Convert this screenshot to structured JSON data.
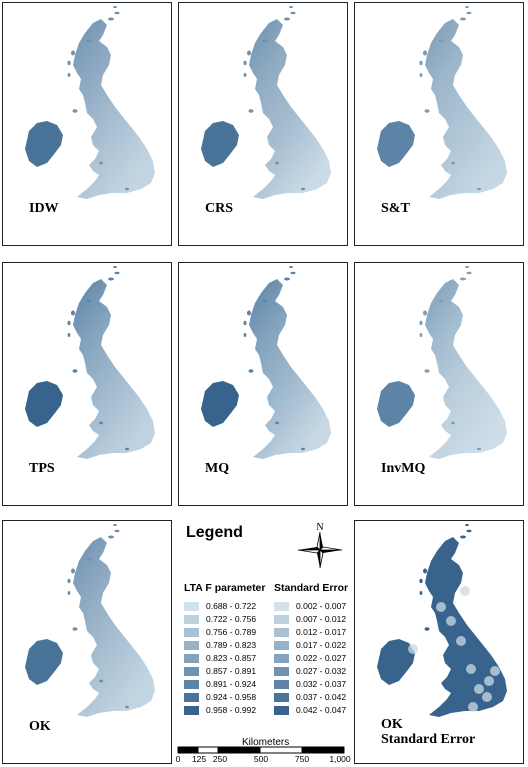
{
  "panels": [
    {
      "label": "IDW"
    },
    {
      "label": "CRS"
    },
    {
      "label": "S&T"
    },
    {
      "label": "TPS"
    },
    {
      "label": "MQ"
    },
    {
      "label": "InvMQ"
    },
    {
      "label": "OK"
    },
    {
      "label": "OK",
      "label2": "Standard Error"
    }
  ],
  "legend": {
    "title": "Legend",
    "col1_title": "LTA F parameter",
    "col2_title": "Standard Error",
    "col1": [
      {
        "label": "0.688 - 0.722",
        "color": "#d3e1ea"
      },
      {
        "label": "0.722 - 0.756",
        "color": "#bdd0de"
      },
      {
        "label": "0.756 - 0.789",
        "color": "#a9c1d3"
      },
      {
        "label": "0.789 - 0.823",
        "color": "#96b2c9"
      },
      {
        "label": "0.823 - 0.857",
        "color": "#83a3be"
      },
      {
        "label": "0.857 - 0.891",
        "color": "#7093b2"
      },
      {
        "label": "0.891 - 0.924",
        "color": "#5d83a6"
      },
      {
        "label": "0.924 - 0.958",
        "color": "#4a739a"
      },
      {
        "label": "0.958 - 0.992",
        "color": "#38638c"
      }
    ],
    "col2": [
      {
        "label": "0.002 - 0.007",
        "color": "#d3e1ea"
      },
      {
        "label": "0.007 - 0.012",
        "color": "#bdd0de"
      },
      {
        "label": "0.012 - 0.017",
        "color": "#a9c1d3"
      },
      {
        "label": "0.017 - 0.022",
        "color": "#96b2c9"
      },
      {
        "label": "0.022 - 0.027",
        "color": "#83a3be"
      },
      {
        "label": "0.027 - 0.032",
        "color": "#7093b2"
      },
      {
        "label": "0.032 - 0.037",
        "color": "#5d83a6"
      },
      {
        "label": "0.037 - 0.042",
        "color": "#4a739a"
      },
      {
        "label": "0.042 - 0.047",
        "color": "#38638c"
      }
    ]
  },
  "north_arrow": {
    "label": "N"
  },
  "scale_bar": {
    "title": "Kilometers",
    "ticks": [
      "0",
      "125",
      "250",
      "500",
      "750",
      "1,000"
    ]
  }
}
